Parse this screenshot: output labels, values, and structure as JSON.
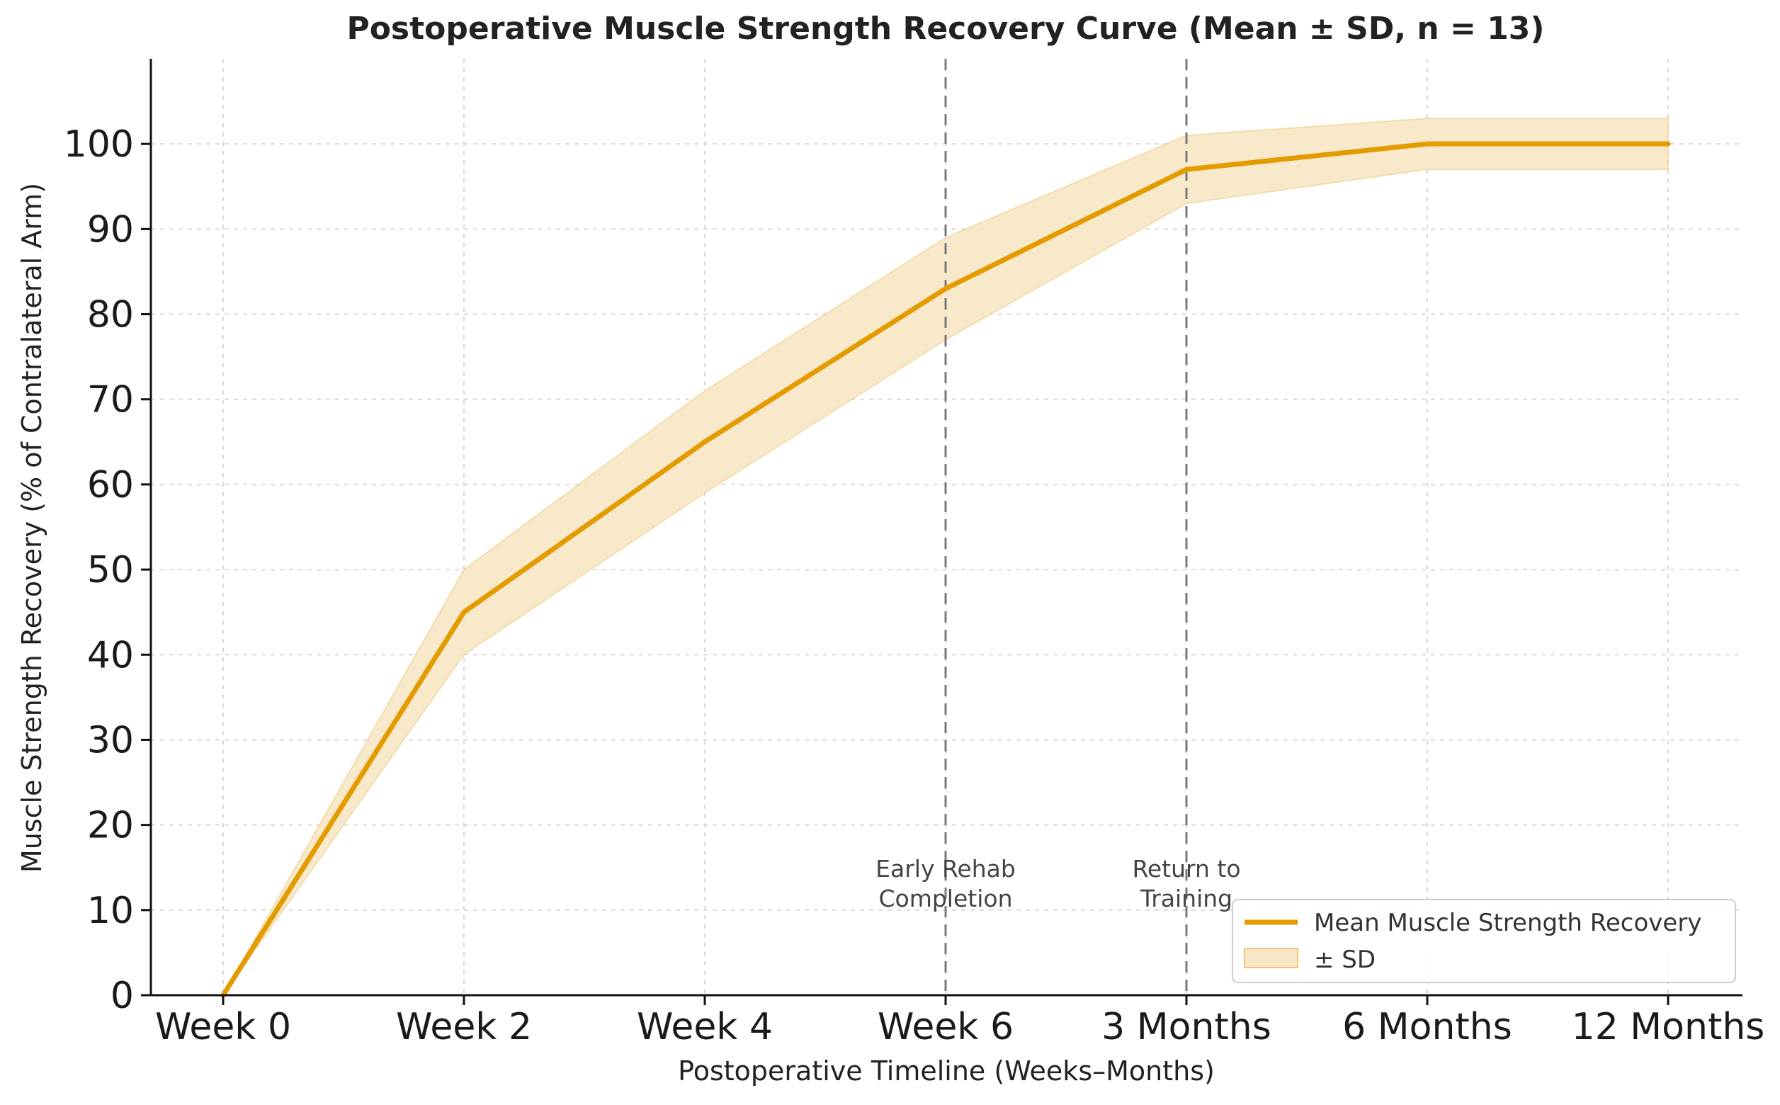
{
  "chart_data": {
    "type": "line",
    "title": "Postoperative Muscle Strength Recovery Curve (Mean ± SD, n = 13)",
    "xlabel": "Postoperative Timeline (Weeks–Months)",
    "ylabel": "Muscle Strength Recovery (% of Contralateral Arm)",
    "categories": [
      "Week 0",
      "Week 2",
      "Week 4",
      "Week 6",
      "3 Months",
      "6 Months",
      "12 Months"
    ],
    "series": [
      {
        "name": "Mean Muscle Strength Recovery",
        "values": [
          0,
          45,
          65,
          83,
          97,
          100,
          100
        ],
        "color": "#e39b00"
      }
    ],
    "band": {
      "name": "± SD",
      "lower": [
        0,
        40,
        59,
        77,
        93,
        97,
        97
      ],
      "upper": [
        0,
        50,
        71,
        89,
        101,
        103,
        103
      ],
      "color": "#f7e7c5",
      "edge_color": "#ecc77b"
    },
    "ylim": [
      0,
      110
    ],
    "yticks": [
      0,
      10,
      20,
      30,
      40,
      50,
      60,
      70,
      80,
      90,
      100
    ],
    "grid": true,
    "annotations": [
      {
        "category": "Week 6",
        "lines": [
          "Early Rehab",
          "Completion"
        ]
      },
      {
        "category": "3 Months",
        "lines": [
          "Return to",
          "Training"
        ]
      }
    ],
    "legend": {
      "location": "lower-right",
      "entries": [
        "Mean Muscle Strength Recovery",
        "± SD"
      ]
    }
  }
}
